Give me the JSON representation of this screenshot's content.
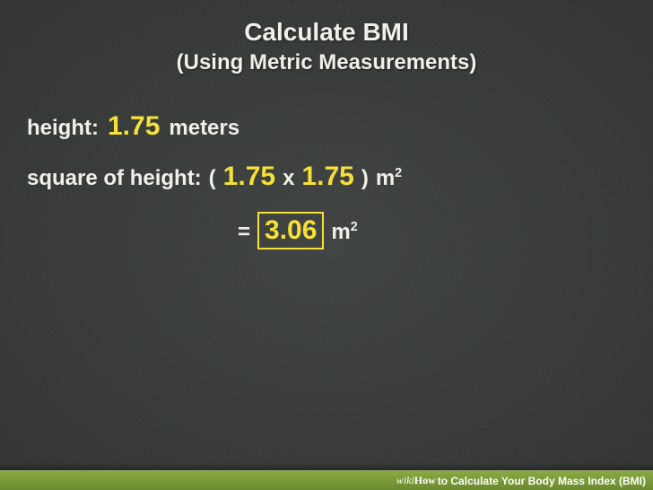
{
  "header": {
    "title": "Calculate BMI",
    "subtitle": "(Using Metric Measurements)"
  },
  "content": {
    "height_label": "height:",
    "height_value": "1.75",
    "height_unit": "meters",
    "square_label": "square of height:",
    "paren_open": "(",
    "operand_a": "1.75",
    "operator": "x",
    "operand_b": "1.75",
    "paren_close": ")",
    "unit_m": "m",
    "exponent": "2",
    "equals": "=",
    "result": "3.06"
  },
  "watermark": {
    "wiki": "wiki",
    "how": "How",
    "rest": " to Calculate Your Body Mass Index (BMI)"
  },
  "colors": {
    "background": "#3a3e3c",
    "text_white": "#f0f0e8",
    "text_yellow": "#f5e038",
    "bar_top": "#8aa842",
    "bar_bottom": "#6b8a2f"
  },
  "typography": {
    "title_size": 28,
    "subtitle_size": 24,
    "label_size": 24,
    "value_size": 30
  }
}
